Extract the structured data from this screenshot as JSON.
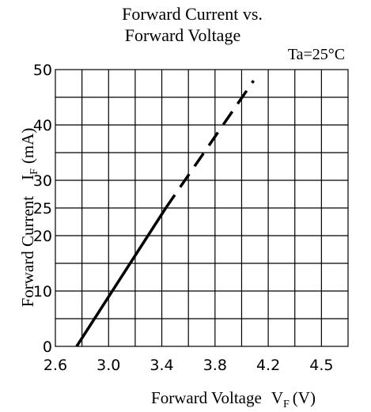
{
  "chart_data": {
    "type": "line",
    "title_line1": "Forward Current vs.",
    "title_line2": "Forward Voltage",
    "annotation": "Ta=25°C",
    "xlabel_main": "Forward Voltage",
    "xlabel_symbol": "V",
    "xlabel_subscript": "F",
    "xlabel_unit": "(V)",
    "ylabel_main": "Forward Current",
    "ylabel_symbol": "I",
    "ylabel_subscript": "F",
    "ylabel_unit": "(mA)",
    "x_ticks": [
      "2.6",
      "3.0",
      "3.4",
      "3.8",
      "4.2",
      "4.5"
    ],
    "y_ticks": [
      "0",
      "10",
      "20",
      "25",
      "30",
      "40",
      "50"
    ],
    "grid": true,
    "series": [
      {
        "style": "solid",
        "x": [
          2.76,
          3.43
        ],
        "y": [
          0,
          25
        ]
      },
      {
        "style": "dashed",
        "x": [
          3.43,
          4.09
        ],
        "y": [
          25,
          48
        ]
      }
    ]
  }
}
